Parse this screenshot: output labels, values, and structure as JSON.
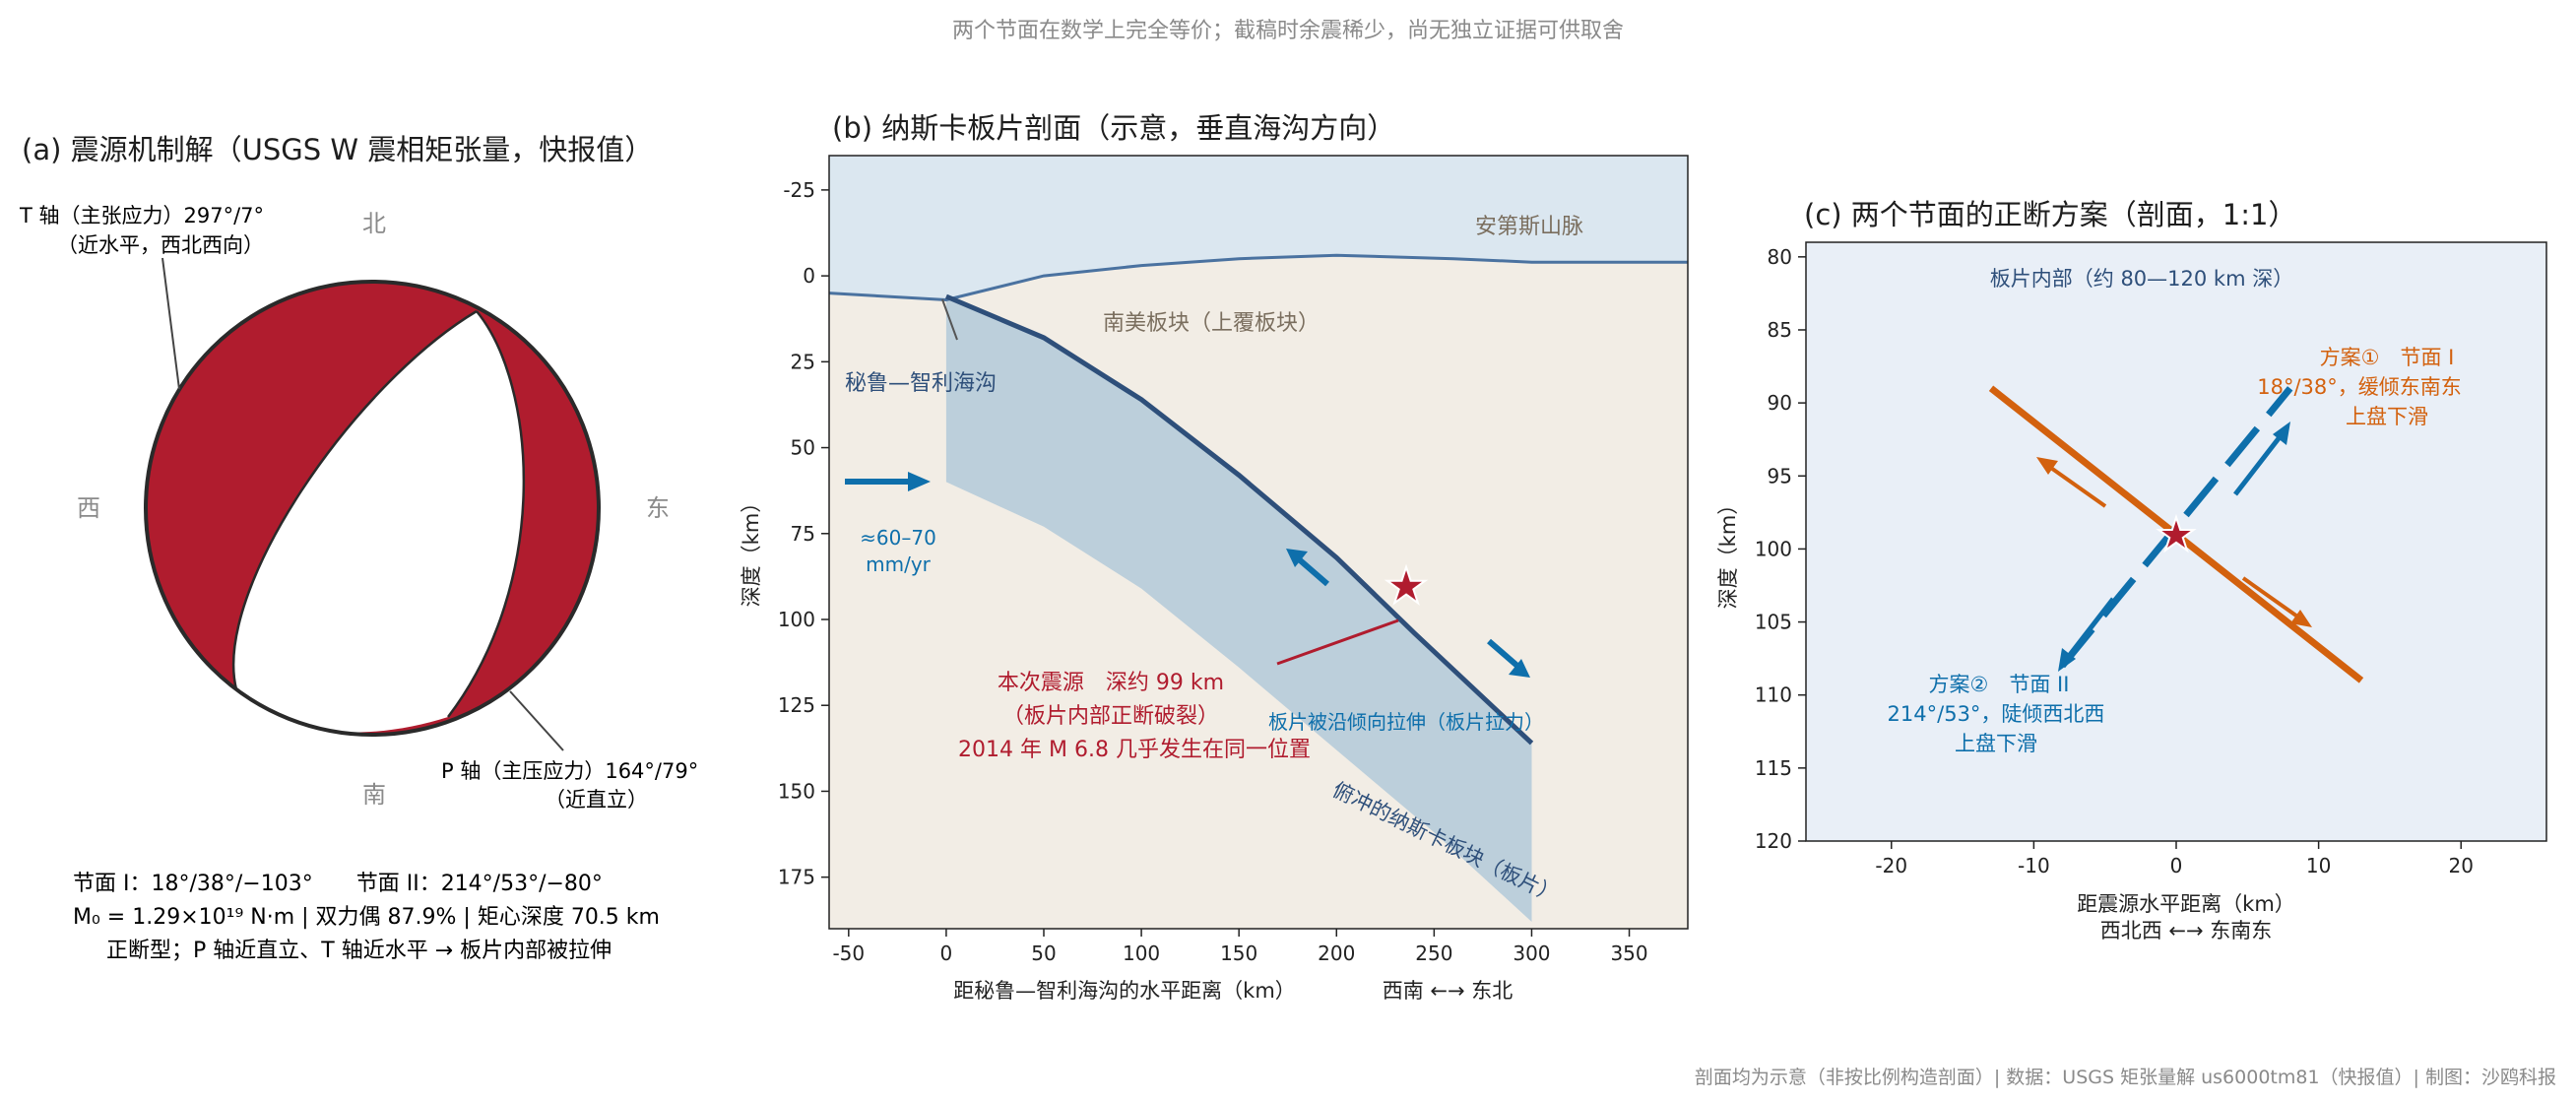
{
  "top_note": "两个节面在数学上完全等价；截稿时余震稀少，尚无独立证据可供取舍",
  "footer": "剖面均为示意（非按比例构造剖面）| 数据：USGS 矩张量解 us6000tm81（快报值）| 制图：沙鸥科报",
  "colors": {
    "beachball_red": "#b01c2e",
    "plate_blue": "#bccfdb",
    "slab_line": "#2e4f7a",
    "mantle_bg": "#f2ede5",
    "sky_bg": "#dbe7f0",
    "accent_blue": "#0e6fab",
    "accent_orange": "#d3610e",
    "panel_c_bg": "#e9eff7"
  },
  "panel_a": {
    "title": "(a) 震源机制解（USGS W 震相矩张量，快报值）",
    "north": "北",
    "south": "南",
    "east": "东",
    "west": "西",
    "t_axis_1": "T 轴（主张应力）297°/7°",
    "t_axis_2": "（近水平，西北西向）",
    "p_axis_1": "P 轴（主压应力）164°/79°",
    "p_axis_2": "（近直立）",
    "info_1": "节面 I：18°/38°/−103°　　节面 II：214°/53°/−80°",
    "info_2": "M₀ = 1.29×10¹⁹ N·m | 双力偶 87.9% | 矩心深度 70.5 km",
    "info_3": "正断型；P 轴近直立、T 轴近水平 → 板片内部被拉伸"
  },
  "panel_b": {
    "title": "(b) 纳斯卡板片剖面（示意，垂直海沟方向）",
    "andes": "安第斯山脉",
    "south_american_plate": "南美板块（上覆板块）",
    "trench": "秘鲁—智利海沟",
    "rate_1": "≈60–70",
    "rate_2": "mm/yr",
    "slab_label": "俯冲的纳斯卡板块（板片）",
    "tension_label": "板片被沿倾向拉伸（板片拉力）",
    "quake_1": "本次震源　深约 99 km",
    "quake_2": "（板片内部正断破裂）",
    "quake_3": "2014 年 M 6.8 几乎发生在同一位置",
    "x_direction": "西南 ←→ 东北"
  },
  "panel_c": {
    "title": "(c) 两个节面的正断方案（剖面，1:1）",
    "region_label": "板片内部（约 80—120 km 深）",
    "plan1_1": "方案①　节面 I",
    "plan1_2": "18°/38°，缓倾东南东",
    "plan1_3": "上盘下滑",
    "plan2_1": "方案②　节面 II",
    "plan2_2": "214°/53°，陡倾西北西",
    "plan2_3": "上盘下滑",
    "x_direction": "西北西 ←→ 东南东"
  },
  "chart_data": [
    {
      "type": "other",
      "title": "(a) 震源机制解（USGS W 震相矩张量，快报值）",
      "mechanism": {
        "strike_dip_rake_1": [
          18,
          38,
          -103
        ],
        "strike_dip_rake_2": [
          214,
          53,
          -80
        ],
        "t_axis_azimuth_plunge": [
          297,
          7
        ],
        "p_axis_azimuth_plunge": [
          164,
          79
        ],
        "moment_Nm": 1.29e+19,
        "double_couple_percent": 87.9,
        "centroid_depth_km": 70.5
      }
    },
    {
      "type": "line",
      "title": "(b) 纳斯卡板片剖面（示意，垂直海沟方向）",
      "xlabel": "距秘鲁—智利海沟的水平距离（km）",
      "ylabel": "深度（km）",
      "xlim": [
        -60,
        380
      ],
      "ylim": [
        -35,
        190
      ],
      "xticks": [
        -50,
        0,
        50,
        100,
        150,
        200,
        250,
        300,
        350
      ],
      "yticks": [
        -25,
        0,
        25,
        50,
        75,
        100,
        125,
        150,
        175
      ],
      "y_inverted": true,
      "series": [
        {
          "points": [
            [
              -60,
              5
            ],
            [
              0,
              7
            ],
            [
              50,
              0
            ],
            [
              100,
              -3
            ],
            [
              150,
              -5
            ],
            [
              200,
              -6
            ],
            [
              260,
              -5
            ],
            [
              300,
              -4
            ],
            [
              380,
              -4
            ]
          ]
        },
        {
          "points": [
            [
              0,
              6
            ],
            [
              50,
              18
            ],
            [
              100,
              36
            ],
            [
              150,
              58
            ],
            [
              200,
              82
            ],
            [
              240,
              104
            ],
            [
              300,
              136
            ]
          ]
        },
        {
          "points": [
            [
              0,
              60
            ],
            [
              50,
              73
            ],
            [
              100,
              91
            ],
            [
              150,
              114
            ],
            [
              200,
              138
            ],
            [
              250,
              162
            ],
            [
              300,
              188
            ]
          ]
        }
      ],
      "points": [
        {
          "x": 238,
          "y": 99
        }
      ]
    },
    {
      "type": "line",
      "title": "(c) 两个节面的正断方案（剖面，1:1）",
      "xlabel": "距震源水平距离（km）",
      "ylabel": "深度（km）",
      "xlim": [
        -26,
        26
      ],
      "ylim": [
        79,
        120
      ],
      "xticks": [
        -20,
        -10,
        0,
        10,
        20
      ],
      "yticks": [
        80,
        85,
        90,
        95,
        100,
        105,
        110,
        115,
        120
      ],
      "y_inverted": true,
      "series": [
        {
          "points": [
            [
              -13,
              89
            ],
            [
              13,
              109
            ]
          ]
        },
        {
          "points": [
            [
              -8,
              108
            ],
            [
              8,
              89
            ]
          ]
        }
      ],
      "points": [
        {
          "x": 0,
          "y": 99
        }
      ]
    }
  ]
}
